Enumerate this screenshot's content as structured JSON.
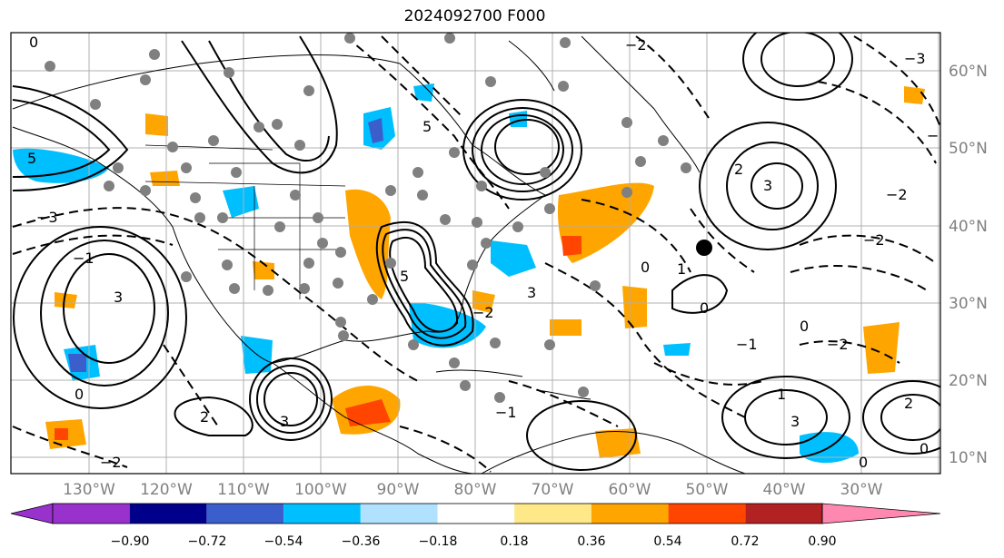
{
  "title": "2024092700 F000",
  "lon_labels": [
    "130°W",
    "120°W",
    "110°W",
    "100°W",
    "90°W",
    "80°W",
    "70°W",
    "60°W",
    "50°W",
    "40°W",
    "30°W"
  ],
  "lat_labels": [
    "60°N",
    "50°N",
    "40°N",
    "30°N",
    "20°N",
    "10°N"
  ],
  "colorbar": {
    "tick_labels": [
      "−0.90",
      "−0.72",
      "−0.54",
      "−0.36",
      "−0.18",
      "0.18",
      "0.36",
      "0.54",
      "0.72",
      "0.90"
    ],
    "colors": [
      "#9932cc",
      "#00008b",
      "#3a5fcd",
      "#00bfff",
      "#b0e2ff",
      "#ffffff",
      "#ffe887",
      "#ffa500",
      "#ff4500",
      "#b22222",
      "#ff88b0"
    ]
  },
  "contour_labels": [
    "0",
    "1",
    "2",
    "3",
    "5",
    "−1",
    "−2",
    "−3"
  ],
  "colors": {
    "grid": "#b0b0b0",
    "station": "#808080",
    "contour": "#000000"
  }
}
